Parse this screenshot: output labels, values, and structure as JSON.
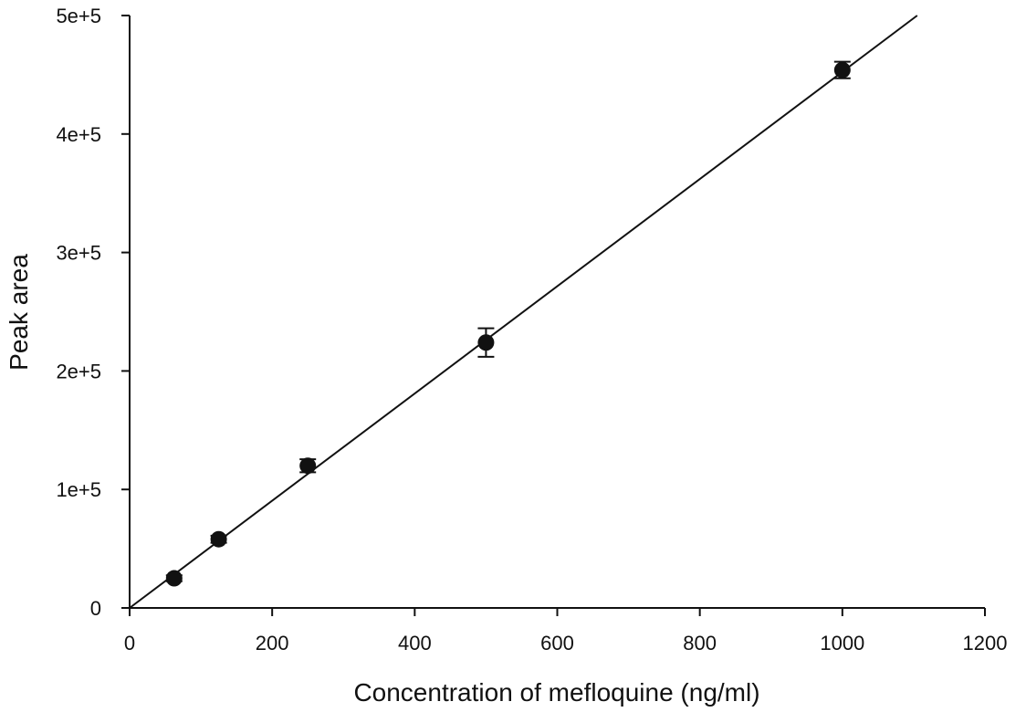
{
  "chart_data": {
    "type": "scatter",
    "title": "",
    "xlabel": "Concentration of mefloquine (ng/ml)",
    "ylabel": "Peak area",
    "xlim": [
      0,
      1200
    ],
    "ylim": [
      0,
      500000
    ],
    "x_ticks": [
      0,
      200,
      400,
      600,
      800,
      1000,
      1200
    ],
    "x_tick_labels": [
      "0",
      "200",
      "400",
      "600",
      "800",
      "1000",
      "1200"
    ],
    "y_ticks": [
      0,
      100000,
      200000,
      300000,
      400000,
      500000
    ],
    "y_tick_labels": [
      "0",
      "1e+5",
      "2e+5",
      "3e+5",
      "4e+5",
      "5e+5"
    ],
    "grid": false,
    "legend": "none",
    "series": [
      {
        "x": [
          62.5,
          125,
          250,
          500,
          1000
        ],
        "y": [
          25000,
          58000,
          120000,
          224000,
          454000
        ],
        "y_error": [
          2500,
          3000,
          5500,
          12000,
          7000
        ],
        "marker": "filled-circle",
        "color": "#111111"
      }
    ],
    "fit_line": {
      "x": [
        0,
        1105
      ],
      "y": [
        0,
        500000
      ],
      "color": "#111111"
    }
  }
}
